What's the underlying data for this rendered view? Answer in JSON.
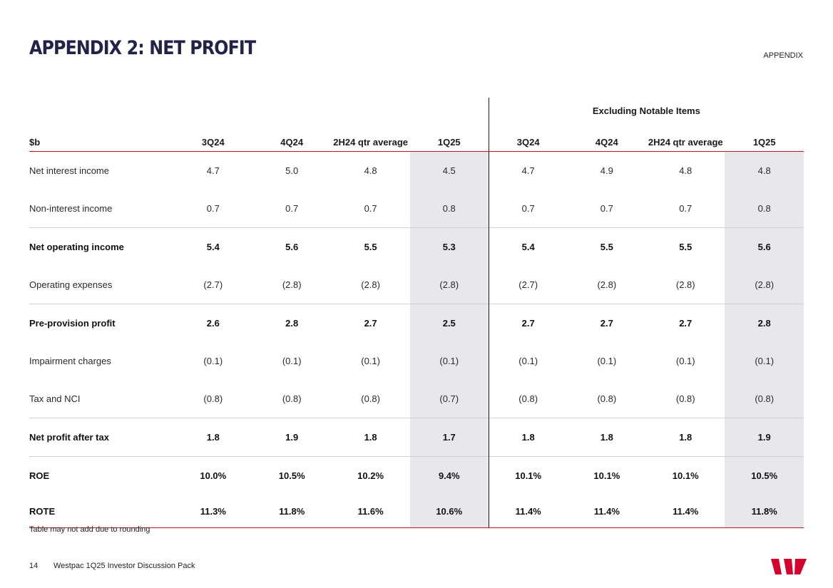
{
  "header": {
    "title": "Appendix 2: Net profit",
    "section": "APPENDIX"
  },
  "table": {
    "group_header": "Excluding Notable Items",
    "columns": [
      "$b",
      "3Q24",
      "4Q24",
      "2H24 qtr average",
      "1Q25",
      "3Q24",
      "4Q24",
      "2H24 qtr average",
      "1Q25"
    ],
    "rows": [
      {
        "label": "Net interest income",
        "values": [
          "4.7",
          "5.0",
          "4.8",
          "4.5",
          "4.7",
          "4.9",
          "4.8",
          "4.8"
        ]
      },
      {
        "label": "Non-interest income",
        "values": [
          "0.7",
          "0.7",
          "0.7",
          "0.8",
          "0.7",
          "0.7",
          "0.7",
          "0.8"
        ]
      },
      {
        "label": "Net operating income",
        "values": [
          "5.4",
          "5.6",
          "5.5",
          "5.3",
          "5.4",
          "5.5",
          "5.5",
          "5.6"
        ]
      },
      {
        "label": "Operating expenses",
        "values": [
          "(2.7)",
          "(2.8)",
          "(2.8)",
          "(2.8)",
          "(2.7)",
          "(2.8)",
          "(2.8)",
          "(2.8)"
        ]
      },
      {
        "label": "Pre-provision profit",
        "values": [
          "2.6",
          "2.8",
          "2.7",
          "2.5",
          "2.7",
          "2.7",
          "2.7",
          "2.8"
        ]
      },
      {
        "label": "Impairment charges",
        "values": [
          "(0.1)",
          "(0.1)",
          "(0.1)",
          "(0.1)",
          "(0.1)",
          "(0.1)",
          "(0.1)",
          "(0.1)"
        ]
      },
      {
        "label": "Tax and NCI",
        "values": [
          "(0.8)",
          "(0.8)",
          "(0.8)",
          "(0.7)",
          "(0.8)",
          "(0.8)",
          "(0.8)",
          "(0.8)"
        ]
      },
      {
        "label": "Net profit after tax",
        "values": [
          "1.8",
          "1.9",
          "1.8",
          "1.7",
          "1.8",
          "1.8",
          "1.8",
          "1.9"
        ]
      },
      {
        "label": "ROE",
        "values": [
          "10.0%",
          "10.5%",
          "10.2%",
          "9.4%",
          "10.1%",
          "10.1%",
          "10.1%",
          "10.5%"
        ]
      },
      {
        "label": "ROTE",
        "values": [
          "11.3%",
          "11.8%",
          "11.6%",
          "10.6%",
          "11.4%",
          "11.4%",
          "11.4%",
          "11.8%"
        ]
      }
    ]
  },
  "footnote": "Table may not add due to rounding",
  "footer": {
    "page_number": "14",
    "document": "Westpac 1Q25 Investor Discussion Pack"
  },
  "logo": {
    "icon": "westpac-logo-icon",
    "color": "#d5002b"
  },
  "colors": {
    "title": "#23234a",
    "accent_line": "#c0151c",
    "shade": "#e8e8ec"
  }
}
